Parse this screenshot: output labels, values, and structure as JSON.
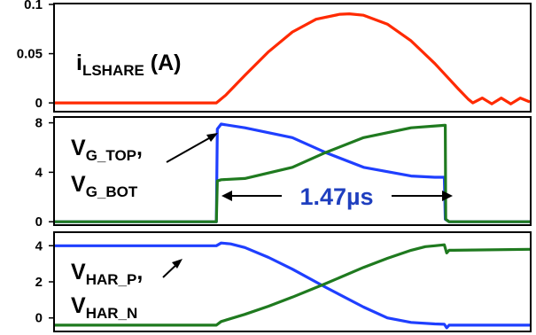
{
  "chart_data": [
    {
      "type": "line",
      "ylim": [
        -0.008,
        0.1
      ],
      "xlim": [
        0,
        100
      ],
      "yticks": [
        0,
        0.05,
        0.1
      ],
      "ytick_labels": [
        "0",
        "0.05",
        "0.1"
      ],
      "label": {
        "main": "i",
        "sub": "LSHARE",
        "tail": " (A)"
      },
      "series": [
        {
          "color": "#ff2a00",
          "x": [
            0,
            34,
            36,
            40,
            45,
            50,
            55,
            60,
            62,
            65,
            70,
            75,
            80,
            85,
            87,
            88,
            90,
            92,
            94,
            96,
            98,
            100
          ],
          "y": [
            0,
            0,
            0.008,
            0.028,
            0.052,
            0.072,
            0.085,
            0.09,
            0.0905,
            0.089,
            0.08,
            0.063,
            0.04,
            0.014,
            0.004,
            0.0,
            0.005,
            -0.001,
            0.005,
            -0.001,
            0.005,
            0.001
          ]
        }
      ]
    },
    {
      "type": "line",
      "ylim": [
        -0.2,
        8.4
      ],
      "xlim": [
        0,
        100
      ],
      "yticks": [
        0,
        4,
        8
      ],
      "ytick_labels": [
        "0",
        "4",
        "8"
      ],
      "label1": {
        "main": "V",
        "sub": "G_TOP",
        "tail": ","
      },
      "label2": {
        "main": "V",
        "sub": "G_BOT",
        "tail": ""
      },
      "annotation": "1.47µs",
      "series": [
        {
          "color": "#1f3fff",
          "x": [
            0,
            34,
            34.2,
            35,
            40,
            50,
            57,
            65,
            75,
            80,
            82,
            82.2,
            83,
            100
          ],
          "y": [
            0,
            0,
            7.5,
            7.9,
            7.6,
            6.8,
            5.6,
            4.4,
            3.7,
            3.6,
            3.6,
            0.2,
            0,
            0
          ]
        },
        {
          "color": "#1f7a1f",
          "x": [
            0,
            34,
            34.2,
            35,
            40,
            50,
            57,
            65,
            75,
            82,
            82.2,
            82.3,
            83,
            100
          ],
          "y": [
            0,
            0,
            3.3,
            3.4,
            3.5,
            4.4,
            5.6,
            6.8,
            7.6,
            7.8,
            7.8,
            0.2,
            0,
            0
          ]
        }
      ]
    },
    {
      "type": "line",
      "ylim": [
        -0.7,
        4.7
      ],
      "xlim": [
        0,
        100
      ],
      "yticks": [
        0,
        2,
        4
      ],
      "ytick_labels": [
        "0",
        "2",
        "4"
      ],
      "label1": {
        "main": "V",
        "sub": "HAR_P",
        "tail": ","
      },
      "label2": {
        "main": "V",
        "sub": "HAR_N",
        "tail": ""
      },
      "series": [
        {
          "color": "#1f3fff",
          "x": [
            0,
            34,
            35,
            37,
            40,
            45,
            50,
            57,
            65,
            70,
            75,
            80,
            82,
            82.5,
            83,
            100
          ],
          "y": [
            4.0,
            4.0,
            4.15,
            4.1,
            3.9,
            3.35,
            2.7,
            1.7,
            0.6,
            0.0,
            -0.25,
            -0.33,
            -0.35,
            -0.55,
            -0.4,
            -0.4
          ]
        },
        {
          "color": "#1f7a1f",
          "x": [
            0,
            34,
            35,
            40,
            45,
            50,
            57,
            65,
            70,
            75,
            78,
            80,
            82,
            82.5,
            83,
            84,
            100
          ],
          "y": [
            -0.4,
            -0.4,
            -0.2,
            0.2,
            0.65,
            1.15,
            1.9,
            2.8,
            3.3,
            3.75,
            3.95,
            4.0,
            4.05,
            3.6,
            3.75,
            3.75,
            3.8
          ]
        }
      ]
    }
  ]
}
